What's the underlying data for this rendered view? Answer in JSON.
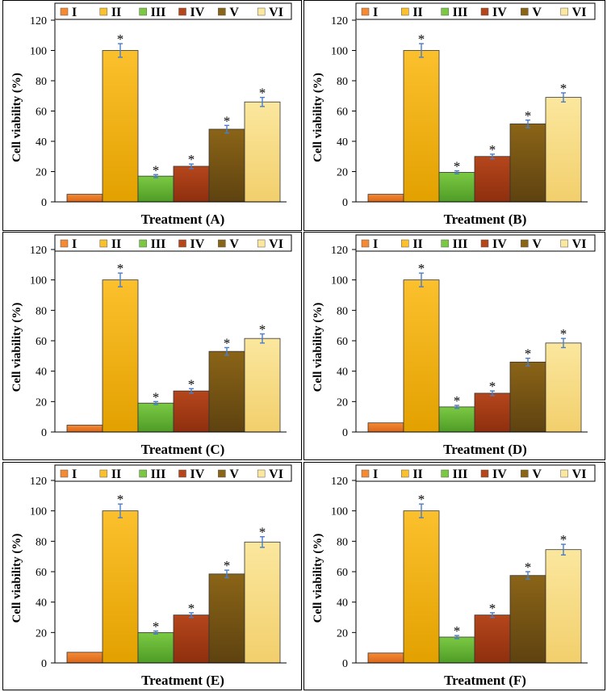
{
  "legend": {
    "entries": [
      "I",
      "II",
      "III",
      "IV",
      "V",
      "VI"
    ],
    "colors": [
      "#F58A34",
      "#FBC02D",
      "#7BC943",
      "#B5461C",
      "#8A6417",
      "#FBE79E"
    ]
  },
  "significance_marker": "*",
  "chart_data": [
    {
      "type": "bar",
      "panel": "A",
      "xlabel": "Treatment (A)",
      "ylabel": "Cell viability (%)",
      "ylim": [
        0,
        120
      ],
      "yticks": [
        "0",
        "20",
        "40",
        "60",
        "80",
        "100",
        "120"
      ],
      "categories": [
        "I",
        "II",
        "III",
        "IV",
        "V",
        "VI"
      ],
      "values": [
        5,
        100,
        17,
        23.5,
        48,
        66
      ],
      "errors": [
        0,
        4.5,
        1,
        1.5,
        2.5,
        3
      ],
      "significant": [
        false,
        true,
        true,
        true,
        true,
        true
      ]
    },
    {
      "type": "bar",
      "panel": "B",
      "xlabel": "Treatment (B)",
      "ylabel": "Cell viability (%)",
      "ylim": [
        0,
        120
      ],
      "yticks": [
        "0",
        "20",
        "40",
        "60",
        "80",
        "100",
        "120"
      ],
      "categories": [
        "I",
        "II",
        "III",
        "IV",
        "V",
        "VI"
      ],
      "values": [
        5,
        100,
        19.5,
        30,
        51.5,
        69
      ],
      "errors": [
        0,
        4.5,
        1,
        1.5,
        2.5,
        3
      ],
      "significant": [
        false,
        true,
        true,
        true,
        true,
        true
      ]
    },
    {
      "type": "bar",
      "panel": "C",
      "xlabel": "Treatment (C)",
      "ylabel": "Cell viability (%)",
      "ylim": [
        0,
        120
      ],
      "yticks": [
        "0",
        "20",
        "40",
        "60",
        "80",
        "100",
        "120"
      ],
      "categories": [
        "I",
        "II",
        "III",
        "IV",
        "V",
        "VI"
      ],
      "values": [
        4.5,
        100,
        19,
        27,
        53,
        61.5
      ],
      "errors": [
        0,
        4.5,
        1,
        1.5,
        2.5,
        3
      ],
      "significant": [
        false,
        true,
        true,
        true,
        true,
        true
      ]
    },
    {
      "type": "bar",
      "panel": "D",
      "xlabel": "Treatment (D)",
      "ylabel": "Cell viability (%)",
      "ylim": [
        0,
        120
      ],
      "yticks": [
        "0",
        "20",
        "40",
        "60",
        "80",
        "100",
        "120"
      ],
      "categories": [
        "I",
        "II",
        "III",
        "IV",
        "V",
        "VI"
      ],
      "values": [
        6,
        100,
        16.5,
        25.5,
        46,
        58.5
      ],
      "errors": [
        0,
        4.5,
        1,
        1.5,
        2.5,
        3
      ],
      "significant": [
        false,
        true,
        true,
        true,
        true,
        true
      ]
    },
    {
      "type": "bar",
      "panel": "E",
      "xlabel": "Treatment (E)",
      "ylabel": "Cell viability (%)",
      "ylim": [
        0,
        120
      ],
      "yticks": [
        "0",
        "20",
        "40",
        "60",
        "80",
        "100",
        "120"
      ],
      "categories": [
        "I",
        "II",
        "III",
        "IV",
        "V",
        "VI"
      ],
      "values": [
        7,
        100,
        20,
        31.5,
        58.5,
        79.5
      ],
      "errors": [
        0,
        4.5,
        1,
        1.5,
        2.5,
        3.5
      ],
      "significant": [
        false,
        true,
        true,
        true,
        true,
        true
      ]
    },
    {
      "type": "bar",
      "panel": "F",
      "xlabel": "Treatment (F)",
      "ylabel": "Cell viability (%)",
      "ylim": [
        0,
        120
      ],
      "yticks": [
        "0",
        "20",
        "40",
        "60",
        "80",
        "100",
        "120"
      ],
      "categories": [
        "I",
        "II",
        "III",
        "IV",
        "V",
        "VI"
      ],
      "values": [
        6.5,
        100,
        17,
        31.5,
        57.5,
        74.5
      ],
      "errors": [
        0,
        4.5,
        1,
        1.5,
        2.5,
        3.5
      ],
      "significant": [
        false,
        true,
        true,
        true,
        true,
        true
      ]
    }
  ]
}
